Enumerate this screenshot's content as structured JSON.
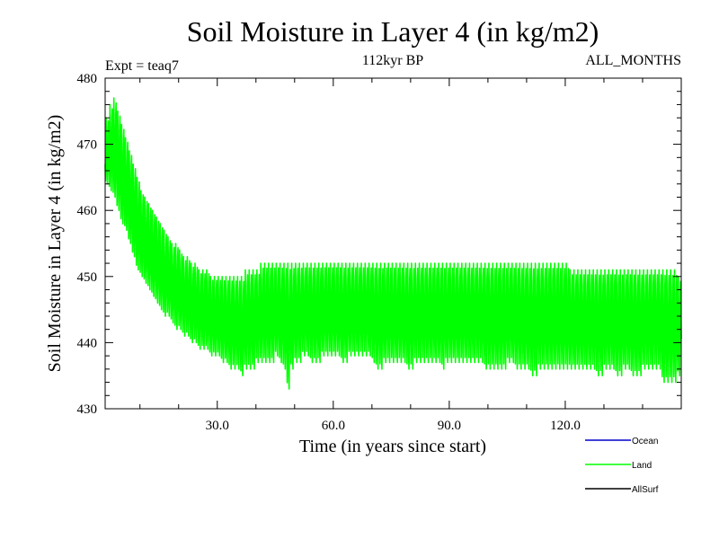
{
  "chart_data": {
    "type": "line",
    "title": "Soil Moisture in Layer 4 (in kg/m2)",
    "subtitle": "112kyr BP",
    "experiment_label": "Expt = teaq7",
    "months_label": "ALL_MONTHS",
    "xlabel": "Time (in years since start)",
    "ylabel": "Soil Moisture in Layer 4 (in kg/m2)",
    "xlim": [
      1,
      150
    ],
    "ylim": [
      430,
      480
    ],
    "x_ticks": [
      30,
      60,
      90,
      120
    ],
    "x_tick_labels": [
      "30.0",
      "60.0",
      "90.0",
      "120.0"
    ],
    "y_ticks": [
      430,
      440,
      450,
      460,
      470,
      480
    ],
    "y_tick_labels": [
      "430",
      "440",
      "450",
      "460",
      "470",
      "480"
    ],
    "legend_position": "below-right",
    "series": [
      {
        "name": "Ocean",
        "color": "#0000cc",
        "values": []
      },
      {
        "name": "Land",
        "color": "#00ff00",
        "sampling": "monthly, 12 per year",
        "annual_min": [
          464,
          463,
          462,
          460,
          458,
          457,
          455,
          453,
          451,
          450,
          449,
          448,
          447,
          446,
          445,
          444,
          444,
          443,
          442,
          442,
          441,
          441,
          440,
          440,
          439,
          439,
          439,
          438,
          438,
          438,
          437,
          437,
          436,
          436,
          436,
          435,
          436,
          436,
          436,
          437,
          437,
          437,
          437,
          437,
          438,
          437,
          436,
          433,
          436,
          437,
          437,
          438,
          438,
          437,
          437,
          437,
          438,
          438,
          438,
          438,
          438,
          437,
          437,
          438,
          438,
          438,
          438,
          438,
          438,
          437,
          436,
          436,
          437,
          437,
          437,
          437,
          437,
          437,
          436,
          436,
          437,
          437,
          437,
          437,
          437,
          437,
          437,
          436,
          437,
          437,
          437,
          437,
          437,
          437,
          437,
          437,
          437,
          437,
          436,
          436,
          436,
          436,
          436,
          436,
          437,
          437,
          436,
          436,
          436,
          436,
          435,
          435,
          436,
          436,
          436,
          436,
          436,
          436,
          436,
          436,
          436,
          436,
          436,
          436,
          436,
          436,
          436,
          435,
          435,
          436,
          436,
          436,
          435,
          435,
          436,
          436,
          435,
          435,
          435,
          436,
          436,
          436,
          436,
          436,
          434,
          434,
          434,
          434,
          435,
          437
        ],
        "annual_max": [
          474,
          476,
          477,
          475,
          473,
          471,
          469,
          467,
          465,
          463,
          462,
          461,
          460,
          459,
          458,
          457,
          456,
          455,
          455,
          454,
          453,
          453,
          452,
          452,
          451,
          451,
          451,
          450,
          450,
          450,
          450,
          450,
          450,
          450,
          450,
          450,
          451,
          451,
          451,
          451,
          452,
          452,
          452,
          452,
          452,
          452,
          452,
          452,
          452,
          452,
          452,
          452,
          452,
          452,
          452,
          452,
          452,
          452,
          452,
          452,
          452,
          452,
          452,
          452,
          452,
          452,
          452,
          452,
          452,
          452,
          452,
          452,
          452,
          452,
          452,
          452,
          452,
          452,
          452,
          452,
          452,
          452,
          452,
          452,
          452,
          452,
          452,
          452,
          452,
          452,
          452,
          452,
          452,
          452,
          452,
          452,
          452,
          452,
          452,
          452,
          452,
          452,
          452,
          452,
          452,
          452,
          452,
          452,
          452,
          452,
          452,
          452,
          452,
          452,
          452,
          452,
          452,
          452,
          452,
          452,
          451,
          451,
          451,
          451,
          451,
          451,
          451,
          451,
          451,
          451,
          451,
          451,
          451,
          451,
          451,
          451,
          451,
          451,
          451,
          451,
          451,
          451,
          451,
          451,
          451,
          451,
          451,
          451,
          450,
          449
        ]
      },
      {
        "name": "AllSurf",
        "color": "#000000",
        "values": []
      }
    ]
  }
}
